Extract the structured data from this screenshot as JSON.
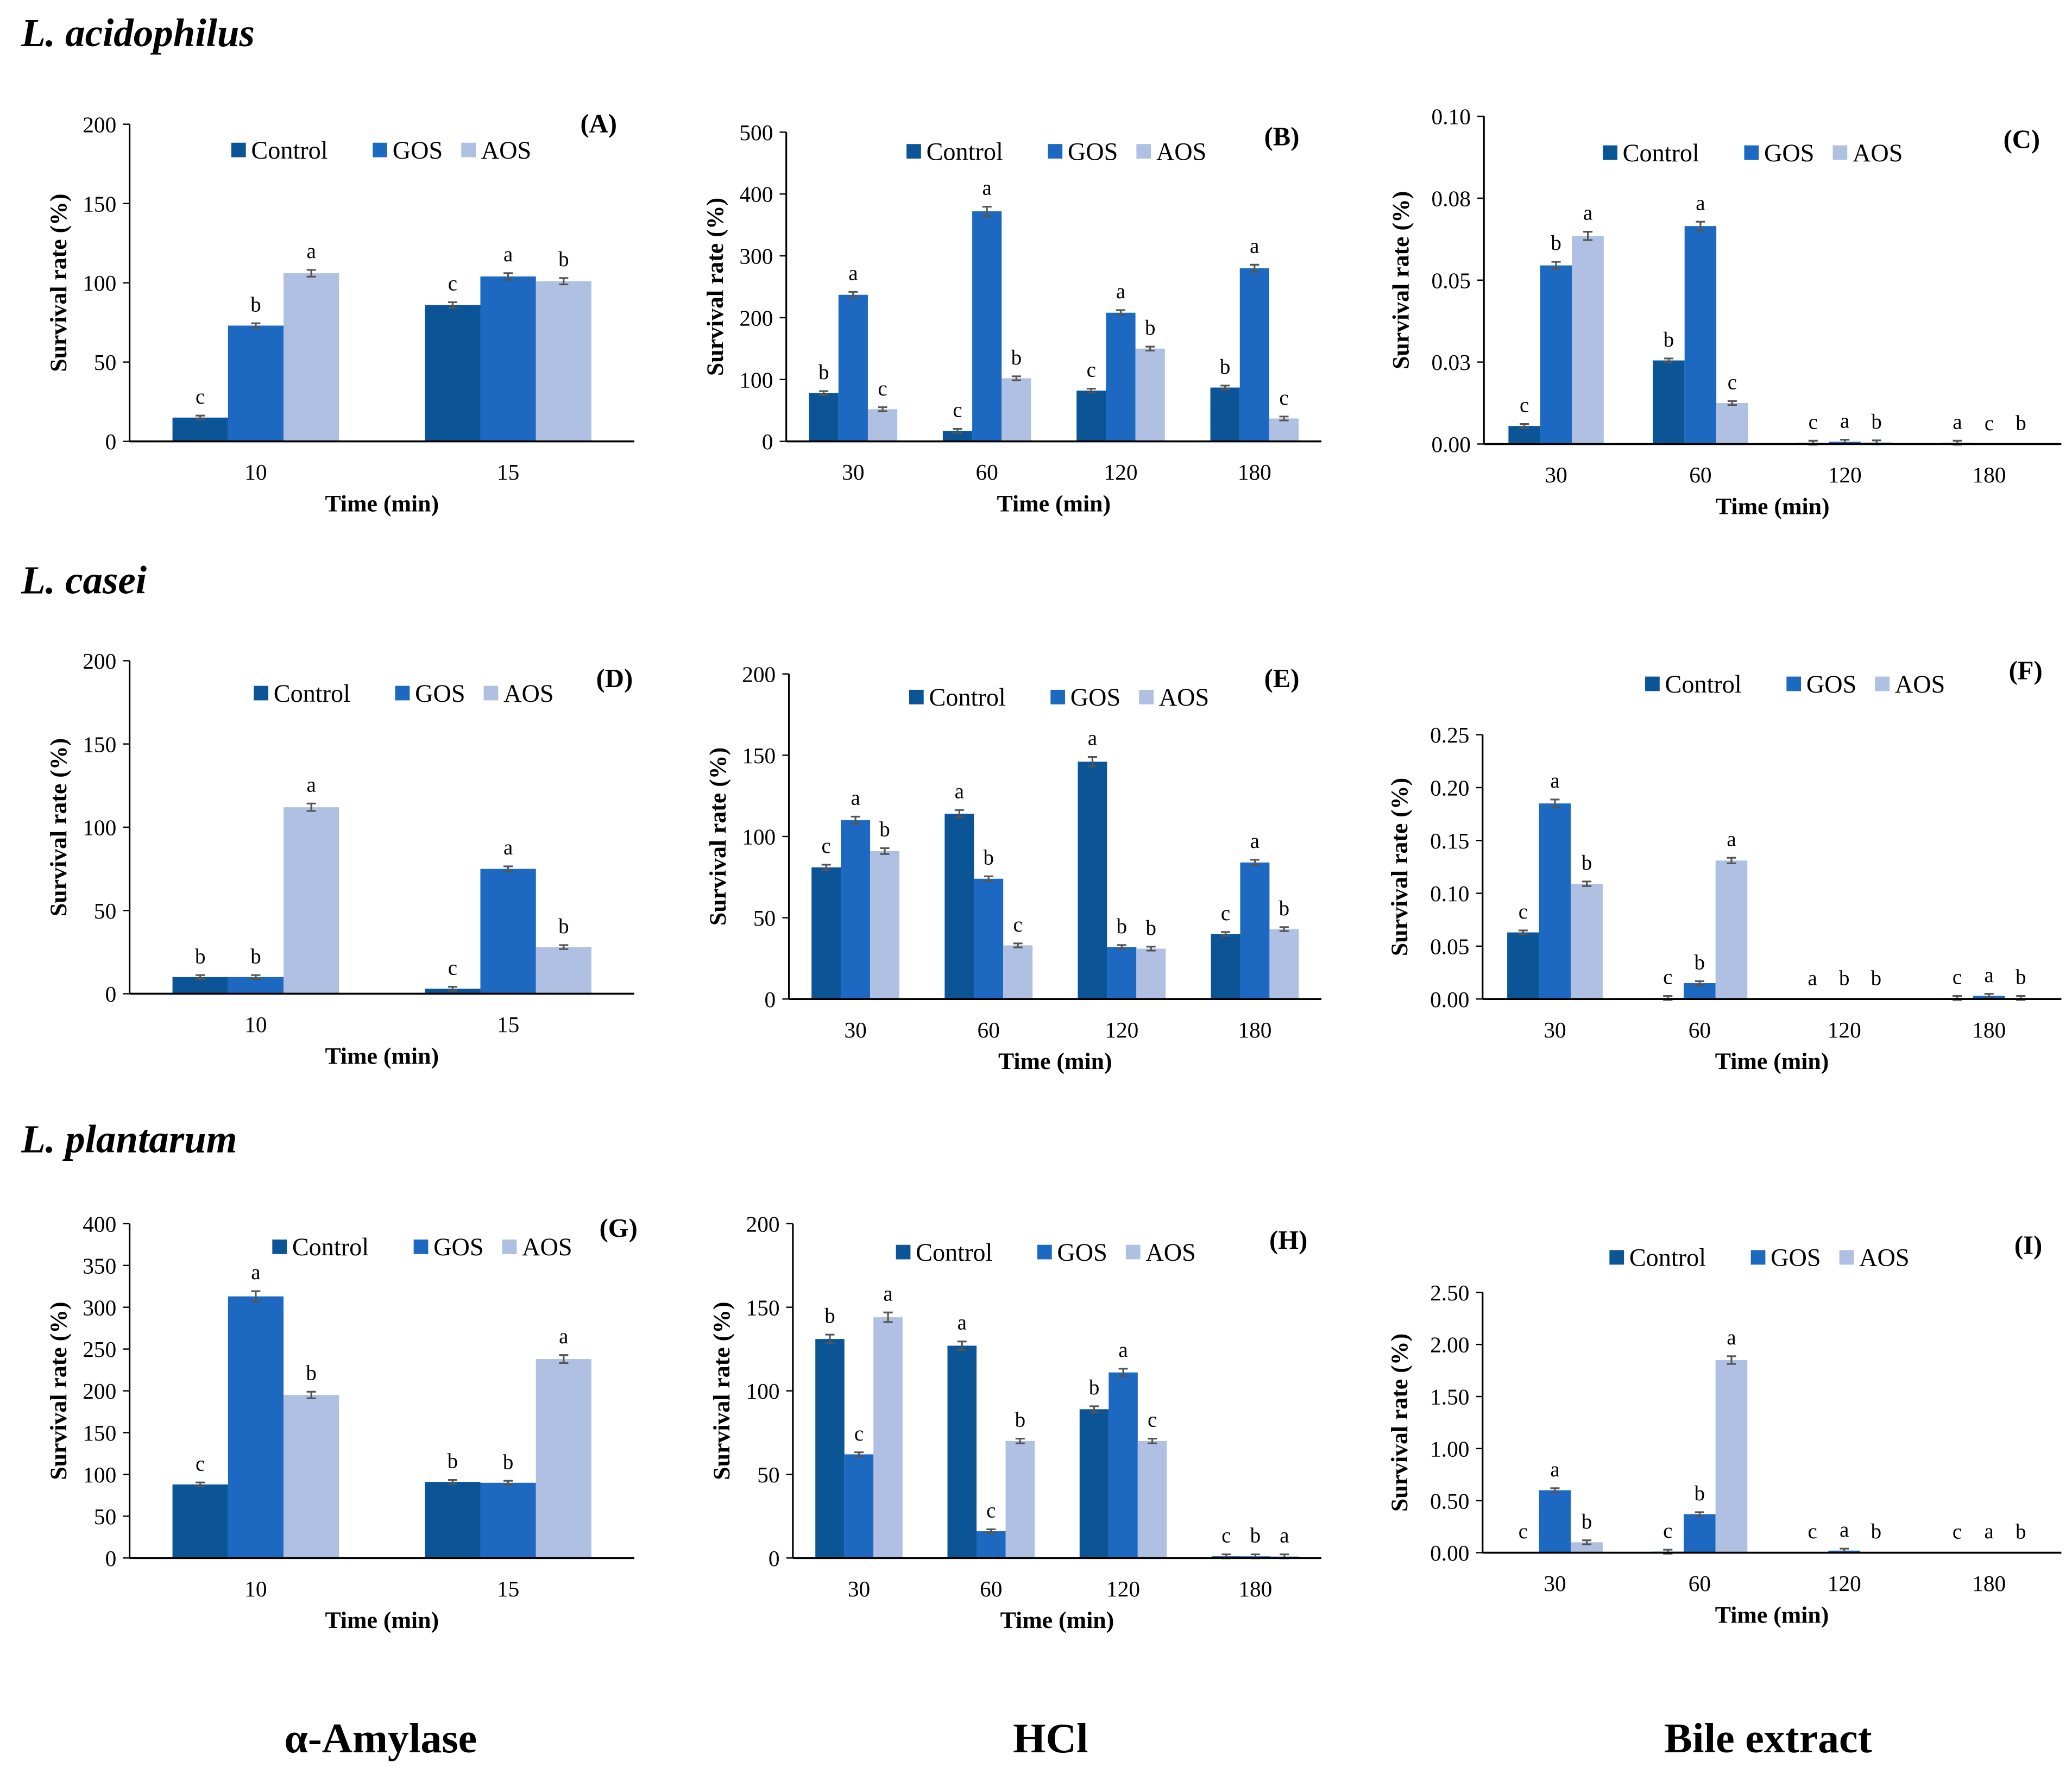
{
  "species": [
    "L. acidophilus",
    "L. casei",
    "L. plantarum"
  ],
  "conditions": [
    "α-Amylase",
    "HCl",
    "Bile extract"
  ],
  "legend": [
    "Control",
    "GOS",
    "AOS"
  ],
  "colors": {
    "Control": "#0b5597",
    "GOS": "#1d69c1",
    "AOS": "#afc0e3",
    "error": "#555555"
  },
  "chart_data": [
    {
      "id": "A",
      "label": "(A)",
      "type": "bar",
      "xlabel": "Time (min)",
      "ylabel": "Survival rate (%)",
      "ylim": [
        0,
        200
      ],
      "ticks": [
        0,
        50,
        100,
        150,
        200
      ],
      "tick_labels": [
        "0",
        "50",
        "100",
        "150",
        "200"
      ],
      "categories": [
        "10",
        "15"
      ],
      "series": [
        {
          "name": "Control",
          "values": [
            15,
            86
          ]
        },
        {
          "name": "GOS",
          "values": [
            73,
            104
          ]
        },
        {
          "name": "AOS",
          "values": [
            106,
            101
          ]
        }
      ],
      "letters": [
        [
          "c",
          "b",
          "a"
        ],
        [
          "c",
          "a",
          "b"
        ]
      ]
    },
    {
      "id": "B",
      "label": "(B)",
      "type": "bar",
      "xlabel": "Time (min)",
      "ylabel": "Survival rate (%)",
      "ylim": [
        0,
        500
      ],
      "ticks": [
        0,
        100,
        200,
        300,
        400,
        500
      ],
      "tick_labels": [
        "0",
        "100",
        "200",
        "300",
        "400",
        "500"
      ],
      "categories": [
        "30",
        "60",
        "120",
        "180"
      ],
      "series": [
        {
          "name": "Control",
          "values": [
            78,
            17,
            82,
            87
          ]
        },
        {
          "name": "GOS",
          "values": [
            237,
            372,
            208,
            280
          ]
        },
        {
          "name": "AOS",
          "values": [
            52,
            102,
            150,
            37
          ]
        }
      ],
      "letters": [
        [
          "b",
          "a",
          "c"
        ],
        [
          "c",
          "a",
          "b"
        ],
        [
          "c",
          "a",
          "b"
        ],
        [
          "b",
          "a",
          "c"
        ]
      ]
    },
    {
      "id": "C",
      "label": "(C)",
      "type": "bar",
      "xlabel": "Time (min)",
      "ylabel": "Survival rate (%)",
      "ylim": [
        0,
        0.1
      ],
      "ticks": [
        0,
        0.025,
        0.05,
        0.075,
        0.1
      ],
      "tick_labels": [
        "0.00",
        "0.03",
        "0.05",
        "0.08",
        "0.10"
      ],
      "categories": [
        "30",
        "60",
        "120",
        "180"
      ],
      "series": [
        {
          "name": "Control",
          "values": [
            0.0055,
            0.0255,
            0.0004,
            0.0004
          ]
        },
        {
          "name": "GOS",
          "values": [
            0.0545,
            0.0665,
            0.0007,
            0.0
          ]
        },
        {
          "name": "AOS",
          "values": [
            0.0635,
            0.0125,
            0.0005,
            0.0001
          ]
        }
      ],
      "letters": [
        [
          "c",
          "b",
          "a"
        ],
        [
          "b",
          "a",
          "c"
        ],
        [
          "c",
          "a",
          "b"
        ],
        [
          "a",
          "c",
          "b"
        ]
      ]
    },
    {
      "id": "D",
      "label": "(D)",
      "type": "bar",
      "xlabel": "Time (min)",
      "ylabel": "Survival rate (%)",
      "ylim": [
        0,
        200
      ],
      "ticks": [
        0,
        50,
        100,
        150,
        200
      ],
      "tick_labels": [
        "0",
        "50",
        "100",
        "150",
        "200"
      ],
      "categories": [
        "10",
        "15"
      ],
      "series": [
        {
          "name": "Control",
          "values": [
            10,
            3
          ]
        },
        {
          "name": "GOS",
          "values": [
            10,
            75
          ]
        },
        {
          "name": "AOS",
          "values": [
            112,
            28
          ]
        }
      ],
      "letters": [
        [
          "b",
          "b",
          "a"
        ],
        [
          "c",
          "a",
          "b"
        ]
      ]
    },
    {
      "id": "E",
      "label": "(E)",
      "type": "bar",
      "xlabel": "Time (min)",
      "ylabel": "Survival rate (%)",
      "ylim": [
        0,
        200
      ],
      "ticks": [
        0,
        50,
        100,
        150,
        200
      ],
      "tick_labels": [
        "0",
        "50",
        "100",
        "150",
        "200"
      ],
      "categories": [
        "30",
        "60",
        "120",
        "180"
      ],
      "series": [
        {
          "name": "Control",
          "values": [
            81,
            114,
            146,
            40
          ]
        },
        {
          "name": "GOS",
          "values": [
            110,
            74,
            32,
            84
          ]
        },
        {
          "name": "AOS",
          "values": [
            91,
            33,
            31,
            43
          ]
        }
      ],
      "letters": [
        [
          "c",
          "a",
          "b"
        ],
        [
          "a",
          "b",
          "c"
        ],
        [
          "a",
          "b",
          "b"
        ],
        [
          "c",
          "a",
          "b"
        ]
      ]
    },
    {
      "id": "F",
      "label": "(F)",
      "type": "bar",
      "xlabel": "Time (min)",
      "ylabel": "Survival rate (%)",
      "ylim": [
        0,
        0.25
      ],
      "ticks": [
        0,
        0.05,
        0.1,
        0.15,
        0.2,
        0.25
      ],
      "tick_labels": [
        "0.00",
        "0.05",
        "0.10",
        "0.15",
        "0.20",
        "0.25"
      ],
      "categories": [
        "30",
        "60",
        "120",
        "180"
      ],
      "series": [
        {
          "name": "Control",
          "values": [
            0.063,
            0.001,
            0.0,
            0.001
          ]
        },
        {
          "name": "GOS",
          "values": [
            0.185,
            0.015,
            0.0,
            0.003
          ]
        },
        {
          "name": "AOS",
          "values": [
            0.109,
            0.131,
            0.0,
            0.001
          ]
        }
      ],
      "letters": [
        [
          "c",
          "a",
          "b"
        ],
        [
          "c",
          "b",
          "a"
        ],
        [
          "a",
          "b",
          "b"
        ],
        [
          "c",
          "a",
          "b"
        ]
      ]
    },
    {
      "id": "G",
      "label": "(G)",
      "type": "bar",
      "xlabel": "Time (min)",
      "ylabel": "Survival rate (%)",
      "ylim": [
        0,
        400
      ],
      "ticks": [
        0,
        50,
        100,
        150,
        200,
        250,
        300,
        350,
        400
      ],
      "tick_labels": [
        "0",
        "50",
        "100",
        "150",
        "200",
        "250",
        "300",
        "350",
        "400"
      ],
      "categories": [
        "10",
        "15"
      ],
      "series": [
        {
          "name": "Control",
          "values": [
            88,
            91
          ]
        },
        {
          "name": "GOS",
          "values": [
            313,
            90
          ]
        },
        {
          "name": "AOS",
          "values": [
            195,
            238
          ]
        }
      ],
      "letters": [
        [
          "c",
          "a",
          "b"
        ],
        [
          "b",
          "b",
          "a"
        ]
      ]
    },
    {
      "id": "H",
      "label": "(H)",
      "type": "bar",
      "xlabel": "Time (min)",
      "ylabel": "Survival rate (%)",
      "ylim": [
        0,
        200
      ],
      "ticks": [
        0,
        50,
        100,
        150,
        200
      ],
      "tick_labels": [
        "0",
        "50",
        "100",
        "150",
        "200"
      ],
      "categories": [
        "30",
        "60",
        "120",
        "180"
      ],
      "series": [
        {
          "name": "Control",
          "values": [
            131,
            127,
            89,
            1
          ]
        },
        {
          "name": "GOS",
          "values": [
            62,
            16,
            111,
            1
          ]
        },
        {
          "name": "AOS",
          "values": [
            144,
            70,
            70,
            1
          ]
        }
      ],
      "letters": [
        [
          "b",
          "c",
          "a"
        ],
        [
          "a",
          "c",
          "b"
        ],
        [
          "b",
          "a",
          "c"
        ],
        [
          "c",
          "b",
          "a"
        ]
      ]
    },
    {
      "id": "I",
      "label": "(I)",
      "type": "bar",
      "xlabel": "Time (min)",
      "ylabel": "Survival rate (%)",
      "ylim": [
        0,
        2.5
      ],
      "ticks": [
        0,
        0.5,
        1,
        1.5,
        2,
        2.5
      ],
      "tick_labels": [
        "0.00",
        "0.50",
        "1.00",
        "1.50",
        "2.00",
        "2.50"
      ],
      "categories": [
        "30",
        "60",
        "120",
        "180"
      ],
      "series": [
        {
          "name": "Control",
          "values": [
            0.005,
            0.01,
            0.005,
            0.002
          ]
        },
        {
          "name": "GOS",
          "values": [
            0.6,
            0.37,
            0.02,
            0.005
          ]
        },
        {
          "name": "AOS",
          "values": [
            0.1,
            1.85,
            0.005,
            0.002
          ]
        }
      ],
      "letters": [
        [
          "c",
          "a",
          "b"
        ],
        [
          "c",
          "b",
          "a"
        ],
        [
          "c",
          "a",
          "b"
        ],
        [
          "c",
          "a",
          "b"
        ]
      ]
    }
  ]
}
